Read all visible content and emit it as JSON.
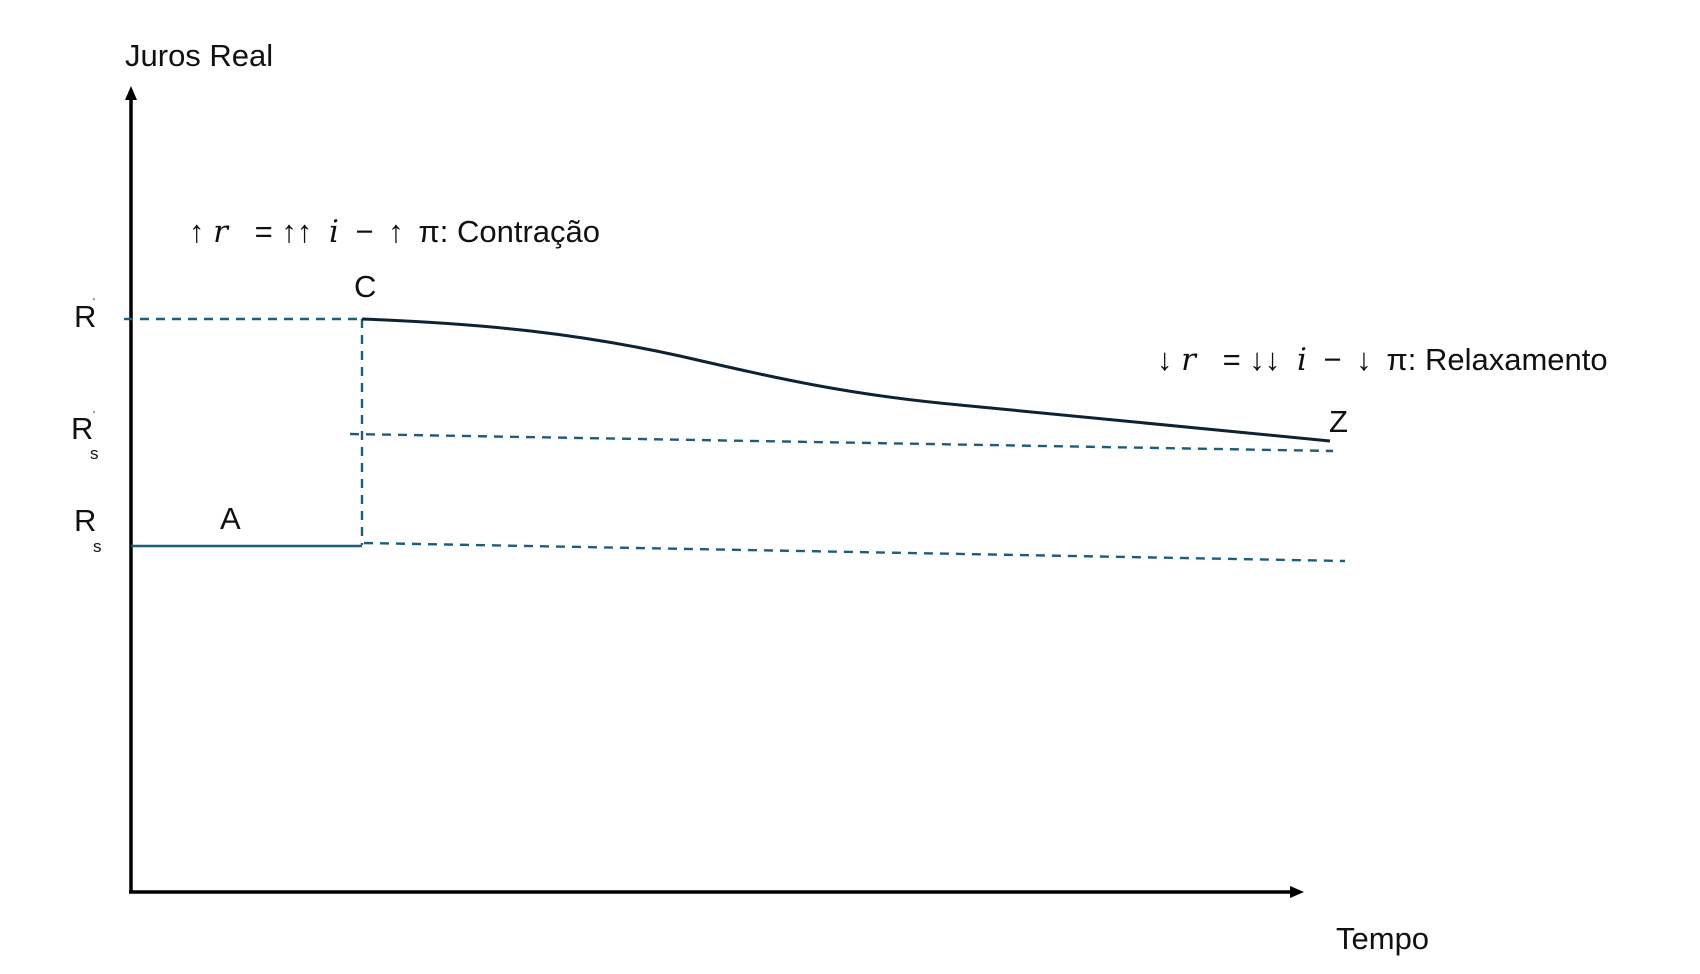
{
  "axes": {
    "y_label": "Juros Real",
    "x_label": "Tempo"
  },
  "y_levels": {
    "high": {
      "main": "R",
      "sup": "'"
    },
    "mid": {
      "main": "R",
      "sup": "'",
      "sub": "s"
    },
    "low": {
      "main": "R",
      "sub": "s"
    }
  },
  "points": {
    "a": "A",
    "c": "C",
    "z": "Z"
  },
  "annotations": {
    "contraction": {
      "arrow1": "↑",
      "r": "r",
      "eq": "=",
      "arrow2": "↑↑",
      "i": "i",
      "minus": "−",
      "arrow3": "↑",
      "rest": "π: Contração"
    },
    "relaxation": {
      "arrow1": "↓",
      "r": "r",
      "eq": "=",
      "arrow2": "↓↓",
      "i": "i",
      "minus": "−",
      "arrow3": "↓",
      "rest": "π: Relaxamento"
    }
  },
  "colors": {
    "axis": "#000000",
    "dashed_lines": "#1f5c78",
    "baseline": "#1f5c78",
    "path_curve": "#0d2333"
  }
}
